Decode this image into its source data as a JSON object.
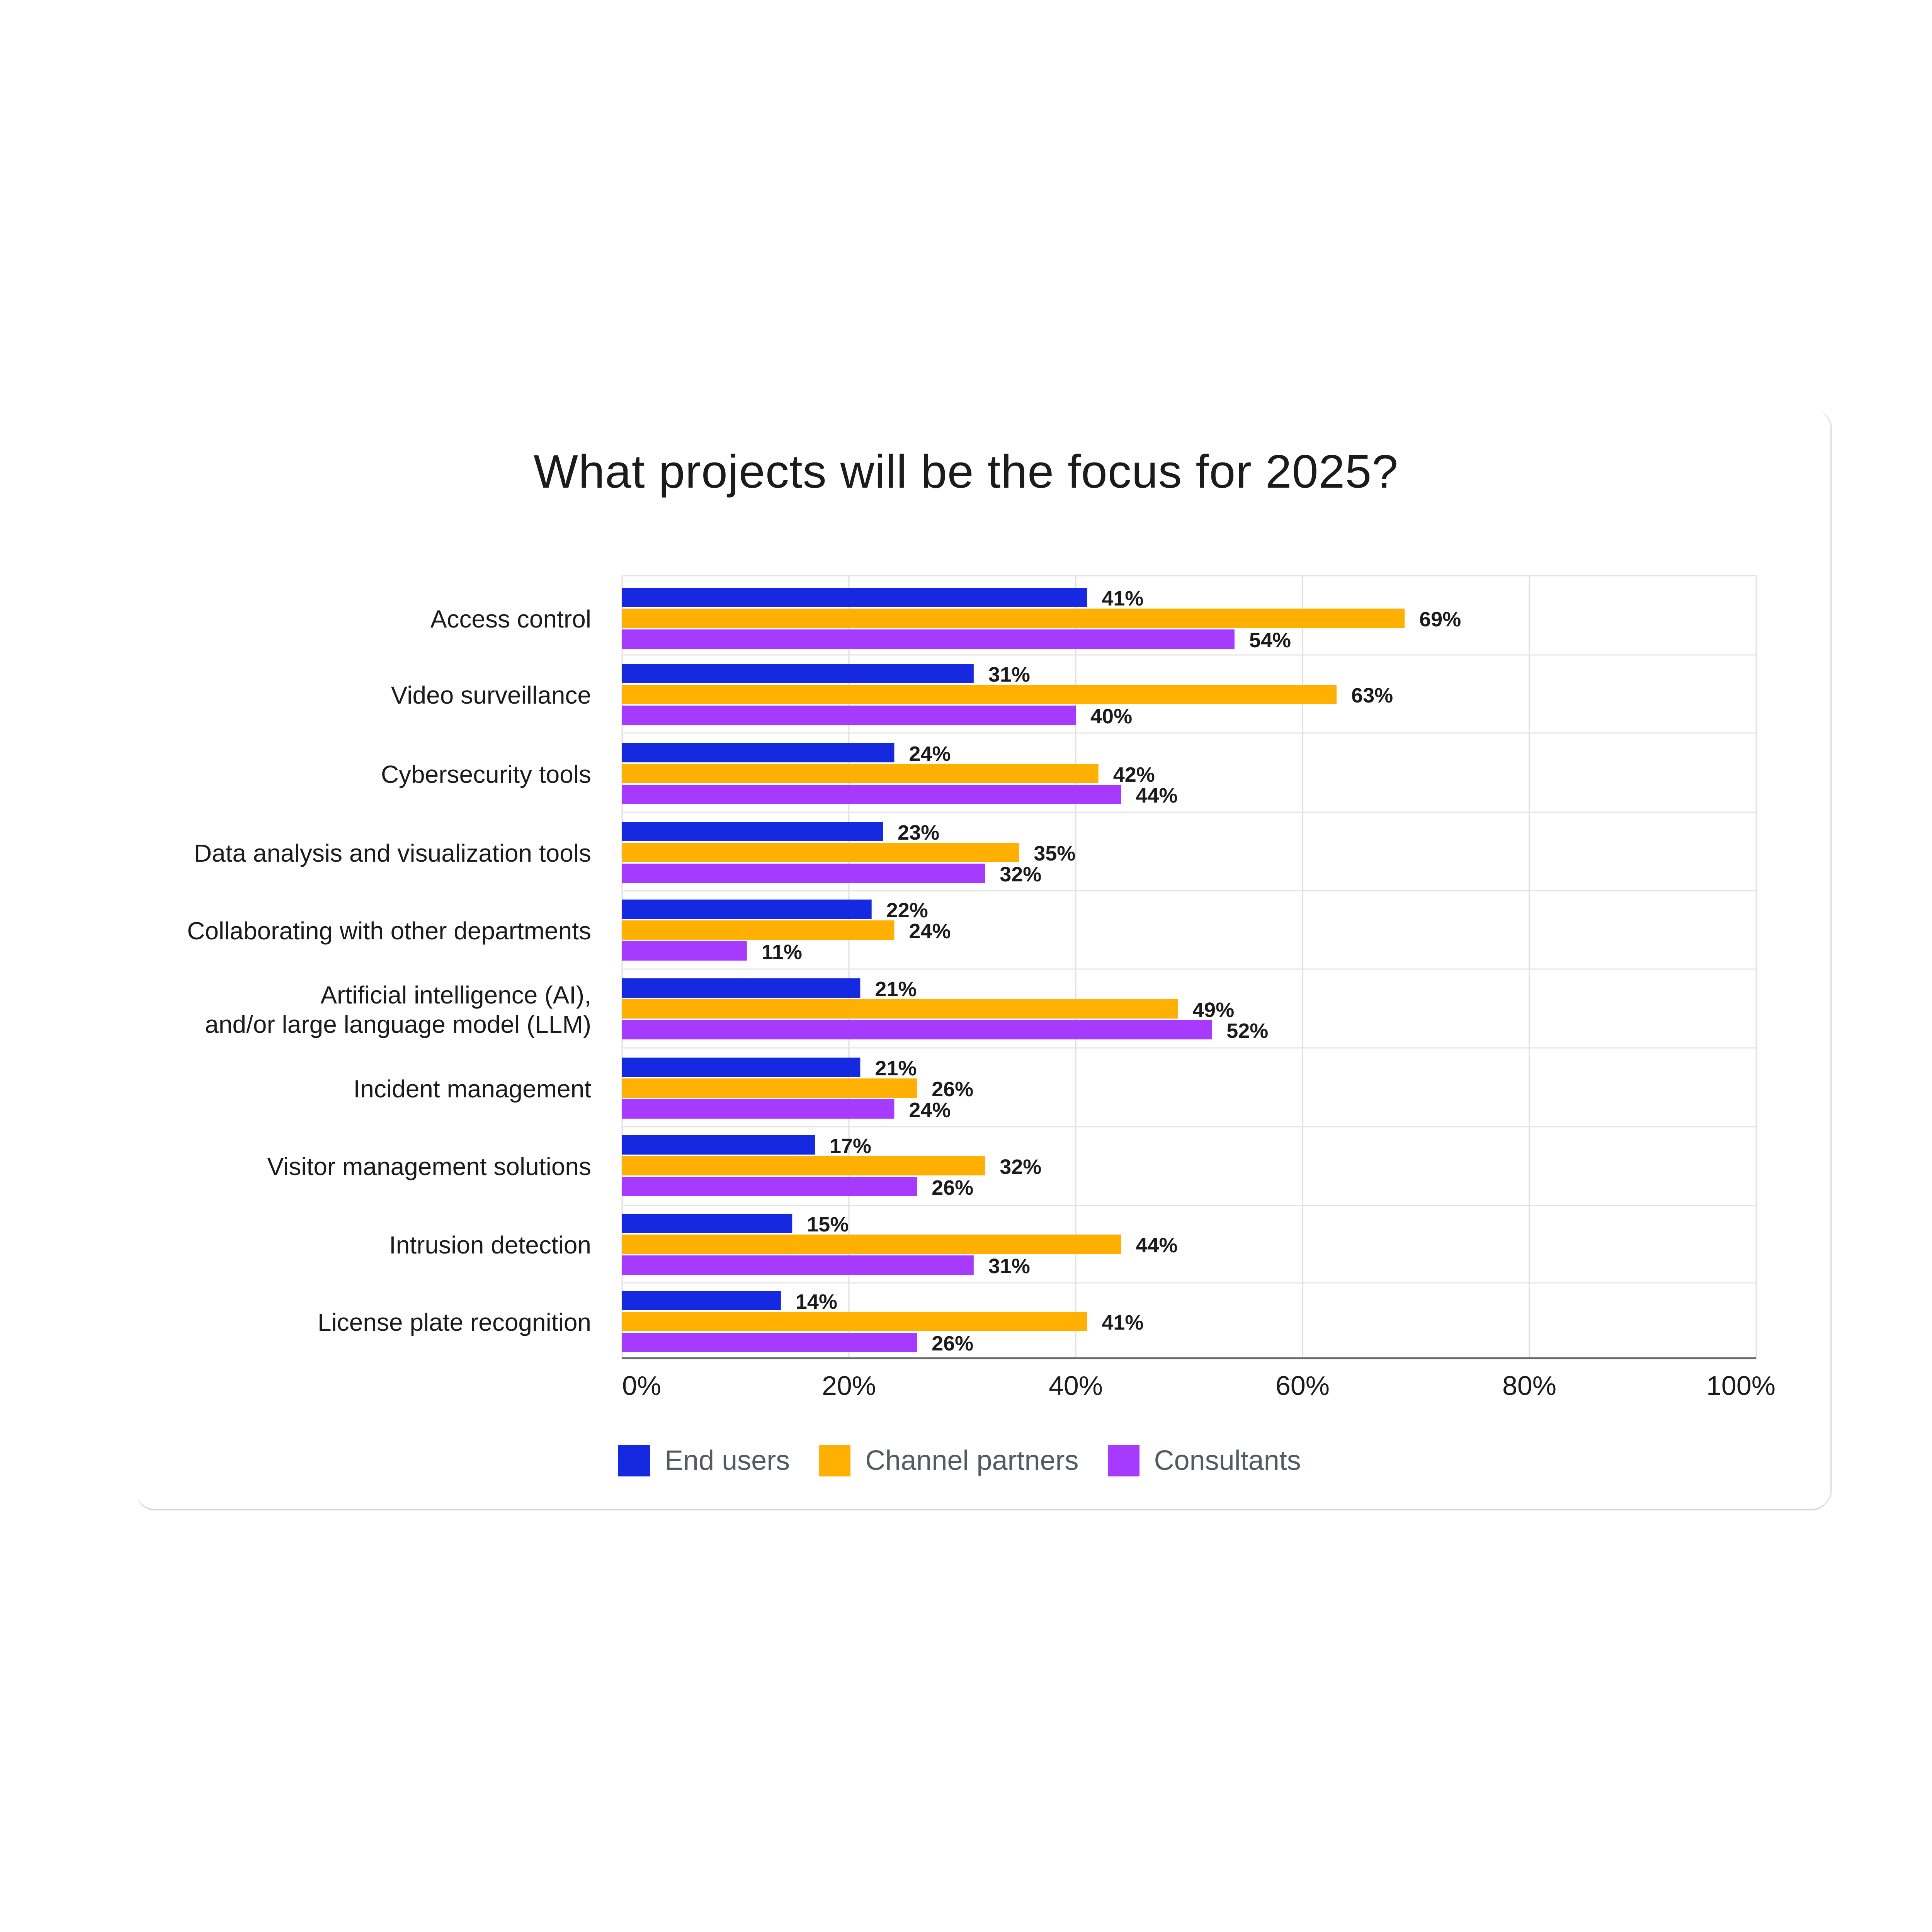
{
  "chart_data": {
    "type": "bar",
    "orientation": "horizontal",
    "title": "What projects will be the focus for 2025?",
    "categories": [
      "Access control",
      "Video surveillance",
      "Cybersecurity tools",
      "Data analysis and visualization tools",
      "Collaborating with other departments",
      "Artificial intelligence (AI),\nand/or large language model (LLM)",
      "Incident management",
      "Visitor management solutions",
      "Intrusion detection",
      "License plate recognition"
    ],
    "series": [
      {
        "name": "End users",
        "color": "#1429e0",
        "values": [
          41,
          31,
          24,
          23,
          22,
          21,
          21,
          17,
          15,
          14
        ]
      },
      {
        "name": "Channel partners",
        "color": "#ffb000",
        "values": [
          69,
          63,
          42,
          35,
          24,
          49,
          26,
          32,
          44,
          41
        ]
      },
      {
        "name": "Consultants",
        "color": "#a63bff",
        "values": [
          54,
          40,
          44,
          32,
          11,
          52,
          24,
          26,
          31,
          26
        ]
      }
    ],
    "xlim": [
      0,
      100
    ],
    "xticks": [
      "0%",
      "20%",
      "40%",
      "60%",
      "80%",
      "100%"
    ],
    "value_suffix": "%",
    "grid": true,
    "legend_position": "bottom"
  }
}
